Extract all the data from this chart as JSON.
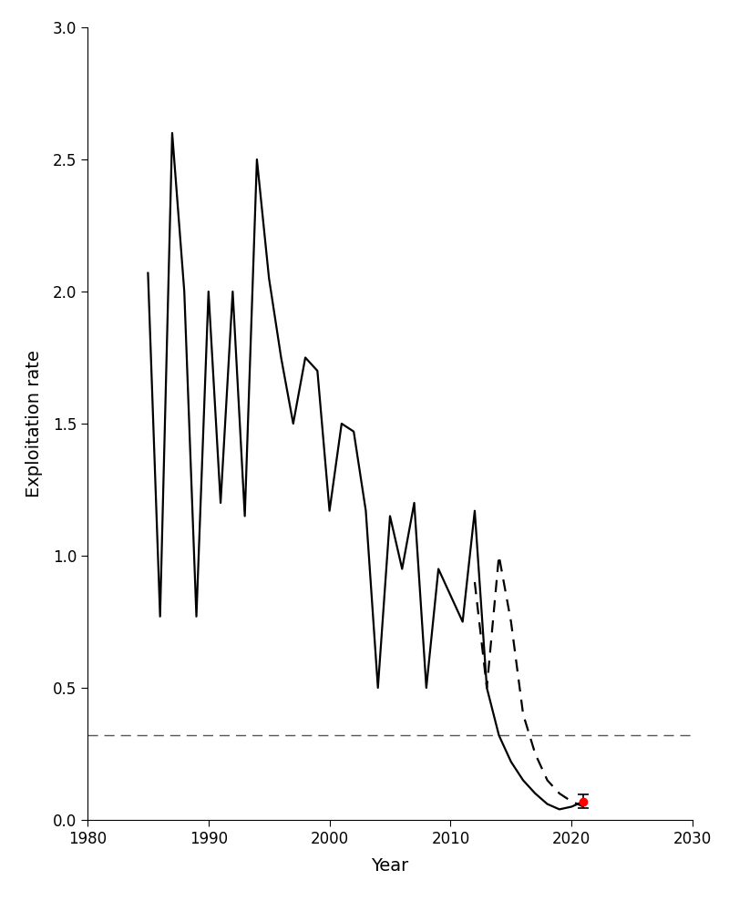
{
  "solid_years": [
    1985,
    1986,
    1987,
    1988,
    1989,
    1990,
    1991,
    1992,
    1993,
    1994,
    1995,
    1996,
    1997,
    1998,
    1999,
    2000,
    2001,
    2002,
    2003,
    2004,
    2005,
    2006,
    2007,
    2008,
    2009,
    2010,
    2011,
    2012,
    2013,
    2014,
    2015,
    2016,
    2017,
    2018,
    2019,
    2020,
    2021
  ],
  "solid_values": [
    2.07,
    0.77,
    2.6,
    2.0,
    0.77,
    2.0,
    1.2,
    2.0,
    1.15,
    2.5,
    2.05,
    1.75,
    1.5,
    1.75,
    1.7,
    1.17,
    1.5,
    1.47,
    1.17,
    0.5,
    1.15,
    0.95,
    1.2,
    0.5,
    0.95,
    0.85,
    0.75,
    1.17,
    0.5,
    0.32,
    0.22,
    0.15,
    0.1,
    0.06,
    0.04,
    0.05,
    0.07
  ],
  "dashed_years": [
    2012,
    2013,
    2014,
    2015,
    2016,
    2017,
    2018,
    2019,
    2020,
    2021
  ],
  "dashed_values": [
    0.9,
    0.5,
    1.0,
    0.75,
    0.4,
    0.25,
    0.15,
    0.1,
    0.07,
    0.05
  ],
  "hline_y": 0.32,
  "red_dot_x": 2021,
  "red_dot_y": 0.07,
  "error_bar_lower": 0.025,
  "error_bar_upper": 0.025,
  "xlim": [
    1980,
    2030
  ],
  "ylim": [
    0.0,
    3.0
  ],
  "xlabel": "Year",
  "ylabel": "Exploitation rate",
  "xticks": [
    1980,
    1990,
    2000,
    2010,
    2020,
    2030
  ],
  "yticks": [
    0.0,
    0.5,
    1.0,
    1.5,
    2.0,
    2.5,
    3.0
  ],
  "line_color": "#000000",
  "hline_color": "#555555",
  "red_dot_color": "#ff0000",
  "background_color": "#ffffff"
}
